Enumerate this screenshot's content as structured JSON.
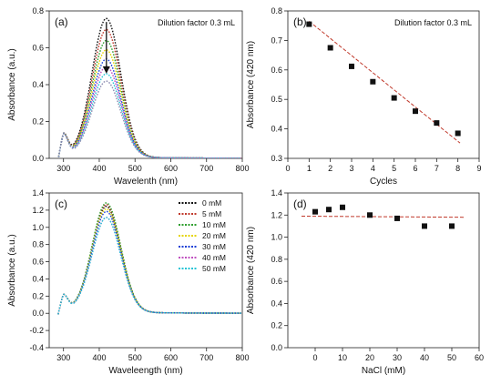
{
  "panels": [
    {
      "id": "a",
      "label": "(a)",
      "type": "line",
      "annotation": "Dilution factor 0.3 mL",
      "xlabel": "Wavelenth (nm)",
      "ylabel": "Absorbance (a.u.)",
      "xlim": [
        260,
        800
      ],
      "ylim": [
        0,
        0.8
      ],
      "xticks": [
        300,
        400,
        500,
        600,
        700,
        800
      ],
      "yticks": [
        0.0,
        0.2,
        0.4,
        0.6,
        0.8
      ],
      "arrow": {
        "x": 420,
        "from": 0.74,
        "to": 0.47
      },
      "spectra": {
        "peak_x": 420,
        "peak_heights": [
          0.75,
          0.69,
          0.63,
          0.58,
          0.53,
          0.49,
          0.45,
          0.41
        ],
        "colors": [
          "#111111",
          "#c0392b",
          "#2e9e2e",
          "#e5d400",
          "#1a3fd6",
          "#c050c0",
          "#23c4d6",
          "#8a8ab0"
        ]
      }
    },
    {
      "id": "b",
      "label": "(b)",
      "type": "scatter",
      "annotation": "Dilution factor 0.3 mL",
      "xlabel": "Cycles",
      "ylabel": "Absorbance (420 nm)",
      "xlim": [
        0,
        9
      ],
      "ylim": [
        0.3,
        0.8
      ],
      "xticks": [
        0,
        1,
        2,
        3,
        4,
        5,
        6,
        7,
        8,
        9
      ],
      "yticks": [
        0.3,
        0.4,
        0.5,
        0.6,
        0.7,
        0.8
      ],
      "x": [
        1,
        2,
        3,
        4,
        5,
        6,
        7,
        8
      ],
      "y": [
        0.755,
        0.675,
        0.612,
        0.56,
        0.505,
        0.46,
        0.42,
        0.385
      ],
      "fit": [
        [
          1,
          0.765
        ],
        [
          8.1,
          0.352
        ]
      ]
    },
    {
      "id": "c",
      "label": "(c)",
      "type": "line",
      "xlabel": "Waveleength (nm)",
      "ylabel": "Absorbance (a.u.)",
      "xlim": [
        260,
        800
      ],
      "ylim": [
        -0.4,
        1.4
      ],
      "xticks": [
        300,
        400,
        500,
        600,
        700,
        800
      ],
      "yticks": [
        -0.4,
        -0.2,
        0.0,
        0.2,
        0.4,
        0.6,
        0.8,
        1.0,
        1.2,
        1.4
      ],
      "legend": [
        {
          "name": "0 mM",
          "color": "#111111"
        },
        {
          "name": "5 mM",
          "color": "#c0392b"
        },
        {
          "name": "10 mM",
          "color": "#2e9e2e"
        },
        {
          "name": "20 mM",
          "color": "#e5d400"
        },
        {
          "name": "30 mM",
          "color": "#1a3fd6"
        },
        {
          "name": "40 mM",
          "color": "#c050c0"
        },
        {
          "name": "50 mM",
          "color": "#23c4d6"
        }
      ],
      "spectra": {
        "peak_x": 420,
        "peak_heights": [
          1.23,
          1.25,
          1.27,
          1.2,
          1.17,
          1.1,
          1.1
        ]
      }
    },
    {
      "id": "d",
      "label": "(d)",
      "type": "scatter",
      "xlabel": "NaCl (mM)",
      "ylabel": "Absorbance (420 nm)",
      "xlim": [
        -10,
        60
      ],
      "ylim": [
        0.0,
        1.4
      ],
      "xticks": [
        0,
        10,
        20,
        30,
        40,
        50,
        60
      ],
      "yticks": [
        0.0,
        0.2,
        0.4,
        0.6,
        0.8,
        1.0,
        1.2,
        1.4
      ],
      "x": [
        0,
        5,
        10,
        20,
        30,
        40,
        50
      ],
      "y": [
        1.23,
        1.25,
        1.27,
        1.2,
        1.17,
        1.1,
        1.1
      ],
      "fit": [
        [
          -5,
          1.19
        ],
        [
          55,
          1.18
        ]
      ]
    }
  ]
}
